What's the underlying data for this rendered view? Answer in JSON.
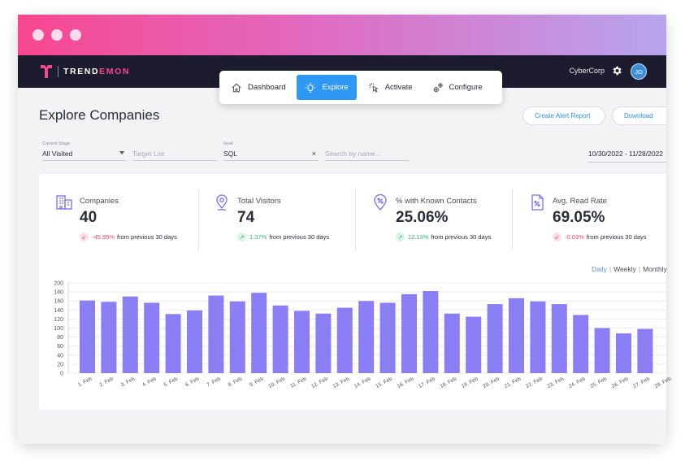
{
  "window": {
    "dots": 3
  },
  "appbar": {
    "logo_text_a": "TREND",
    "logo_text_b": "EMON",
    "org": "CyberCorp",
    "avatar": "JO"
  },
  "nav": {
    "items": [
      {
        "label": "Dashboard",
        "icon": "home-icon",
        "active": false
      },
      {
        "label": "Explore",
        "icon": "lightbulb-icon",
        "active": true
      },
      {
        "label": "Activate",
        "icon": "cursor-click-icon",
        "active": false
      },
      {
        "label": "Configure",
        "icon": "gears-icon",
        "active": false
      }
    ]
  },
  "page": {
    "title": "Explore Companies",
    "create_alert": "Create Alert Report",
    "download": "Download"
  },
  "filters": {
    "stage_label": "Current Stage",
    "stage_value": "All Visited",
    "target_placeholder": "Target List",
    "goal_label": "Goal",
    "goal_value": "SQL",
    "search_placeholder": "Search by name...",
    "date_range": "10/30/2022 - 11/28/2022"
  },
  "stats": [
    {
      "name": "Companies",
      "value": "40",
      "change": "-45.95%",
      "direction": "down",
      "suffix": "from previous 30 days",
      "icon": "building-icon"
    },
    {
      "name": "Total Visitors",
      "value": "74",
      "change": "1.37%",
      "direction": "up",
      "suffix": "from previous 30 days",
      "icon": "location-pin-icon"
    },
    {
      "name": "% with Known Contacts",
      "value": "25.06%",
      "change": "12.13%",
      "direction": "up",
      "suffix": "from previous 30 days",
      "icon": "percent-pin-icon"
    },
    {
      "name": "Avg. Read Rate",
      "value": "69.05%",
      "change": "-0.03%",
      "direction": "down",
      "suffix": "from previous 30 days",
      "icon": "document-percent-icon"
    }
  ],
  "granularity": {
    "daily": "Daily",
    "weekly": "Weekly",
    "monthly": "Monthly",
    "selected": "Daily"
  },
  "colors": {
    "bar": "#8b7ef5",
    "accent": "#2e98f4",
    "brand_pink": "#f7478f"
  },
  "chart_data": {
    "type": "bar",
    "categories": [
      "1. Feb",
      "2. Feb",
      "3. Feb",
      "4. Feb",
      "5. Feb",
      "6. Feb",
      "7. Feb",
      "8. Feb",
      "9. Feb",
      "10. Feb",
      "11. Feb",
      "12. Feb",
      "13. Feb",
      "14. Feb",
      "15. Feb",
      "16. Feb",
      "17. Feb",
      "18. Feb",
      "19. Feb",
      "20. Feb",
      "21. Feb",
      "22. Feb",
      "23. Feb",
      "24. Feb",
      "25. Feb",
      "26. Feb",
      "27. Feb",
      "28. Feb"
    ],
    "values": [
      161,
      158,
      170,
      156,
      131,
      139,
      172,
      159,
      178,
      150,
      138,
      132,
      145,
      160,
      156,
      175,
      182,
      132,
      125,
      153,
      166,
      159,
      153,
      129,
      100,
      88,
      98,
      0
    ],
    "yticks": [
      0,
      20,
      40,
      60,
      80,
      100,
      120,
      140,
      160,
      180,
      200
    ],
    "ylim": [
      0,
      200
    ],
    "grid": true
  }
}
